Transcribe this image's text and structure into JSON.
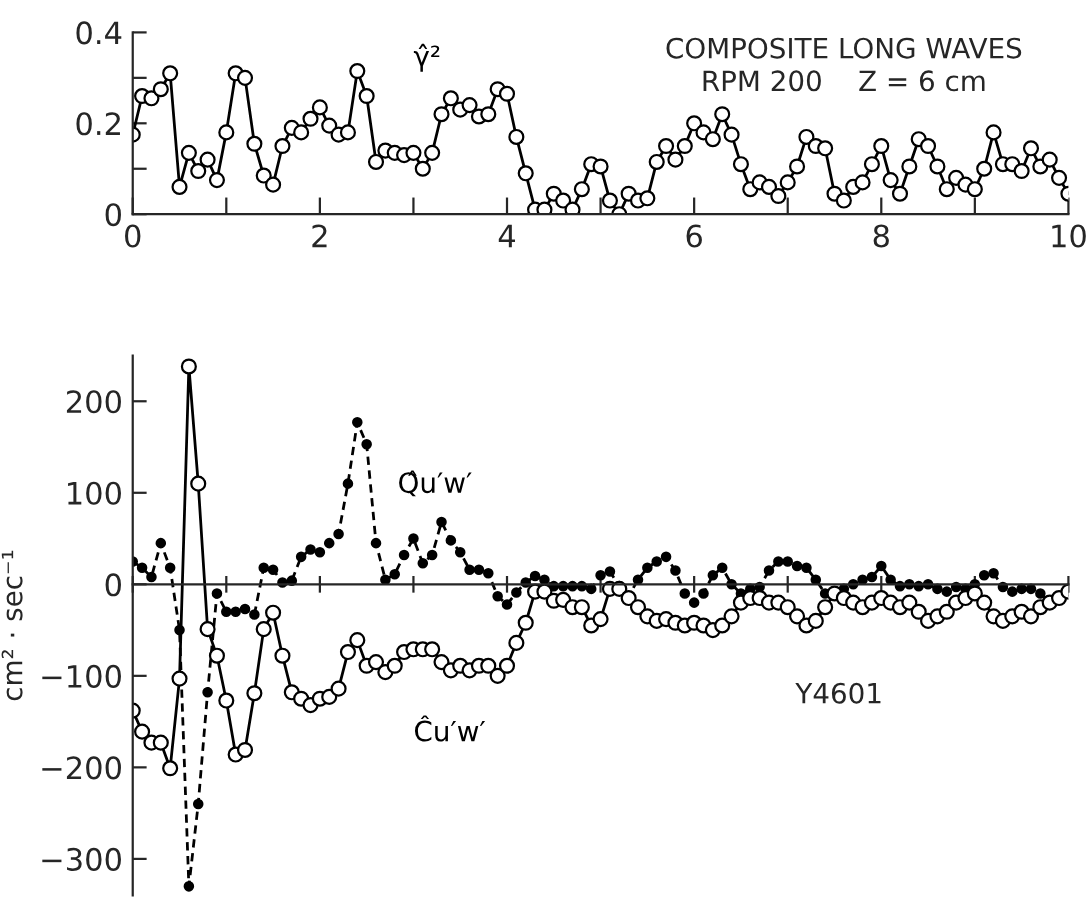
{
  "chart_data": [
    {
      "type": "line",
      "annotations": [
        "COMPOSITE LONG WAVES",
        "RPM 200    Z = 6 cm"
      ],
      "xlim": [
        0,
        10
      ],
      "ylim": [
        0,
        0.4
      ],
      "xticks": [
        0,
        {
          "value": 1,
          "label": null
        },
        2,
        {
          "value": 3,
          "label": null
        },
        4,
        {
          "value": 5,
          "label": null
        },
        6,
        {
          "value": 7,
          "label": null
        },
        8,
        {
          "value": 9,
          "label": null
        },
        10
      ],
      "yticks": [
        0,
        {
          "value": 0.1,
          "label": null
        },
        0.2,
        {
          "value": 0.3,
          "label": null
        },
        0.4
      ],
      "legend": false,
      "series": [
        {
          "name": "γ̂²",
          "color": "#000000",
          "marker": "circle",
          "line_style": "solid",
          "x": [
            0,
            0.1,
            0.2,
            0.3,
            0.4,
            0.5,
            0.6,
            0.7,
            0.8,
            0.9,
            1.0,
            1.1,
            1.2,
            1.3,
            1.4,
            1.5,
            1.6,
            1.7,
            1.8,
            1.9,
            2.0,
            2.1,
            2.2,
            2.3,
            2.4,
            2.5,
            2.6,
            2.7,
            2.8,
            2.9,
            3.0,
            3.1,
            3.2,
            3.3,
            3.4,
            3.5,
            3.6,
            3.7,
            3.8,
            3.9,
            4.0,
            4.1,
            4.2,
            4.3,
            4.4,
            4.5,
            4.6,
            4.7,
            4.8,
            4.9,
            5.0,
            5.1,
            5.2,
            5.3,
            5.4,
            5.5,
            5.6,
            5.7,
            5.8,
            5.9,
            6.0,
            6.1,
            6.2,
            6.3,
            6.4,
            6.5,
            6.6,
            6.7,
            6.8,
            6.9,
            7.0,
            7.1,
            7.2,
            7.3,
            7.4,
            7.5,
            7.6,
            7.7,
            7.8,
            7.9,
            8.0,
            8.1,
            8.2,
            8.3,
            8.4,
            8.5,
            8.6,
            8.7,
            8.8,
            8.9,
            9.0,
            9.1,
            9.2,
            9.3,
            9.4,
            9.5,
            9.6,
            9.7,
            9.8,
            9.9,
            10.0
          ],
          "values": [
            0.175,
            0.26,
            0.255,
            0.275,
            0.31,
            0.06,
            0.135,
            0.095,
            0.12,
            0.075,
            0.18,
            0.31,
            0.3,
            0.155,
            0.085,
            0.065,
            0.15,
            0.19,
            0.18,
            0.21,
            0.235,
            0.195,
            0.175,
            0.18,
            0.315,
            0.26,
            0.115,
            0.14,
            0.135,
            0.13,
            0.135,
            0.1,
            0.135,
            0.22,
            0.255,
            0.23,
            0.24,
            0.215,
            0.22,
            0.275,
            0.265,
            0.17,
            0.09,
            0.01,
            0.01,
            0.045,
            0.03,
            0.01,
            0.055,
            0.11,
            0.105,
            0.03,
            0.0,
            0.045,
            0.03,
            0.035,
            0.115,
            0.15,
            0.12,
            0.15,
            0.2,
            0.18,
            0.165,
            0.22,
            0.175,
            0.11,
            0.055,
            0.07,
            0.06,
            0.04,
            0.07,
            0.105,
            0.17,
            0.15,
            0.145,
            0.045,
            0.03,
            0.06,
            0.07,
            0.11,
            0.15,
            0.075,
            0.045,
            0.105,
            0.165,
            0.15,
            0.105,
            0.055,
            0.08,
            0.065,
            0.055,
            0.1,
            0.18,
            0.11,
            0.11,
            0.095,
            0.145,
            0.105,
            0.12,
            0.08,
            0.045
          ]
        }
      ]
    },
    {
      "type": "line",
      "ylabel": "cm² · sec⁻¹",
      "annotations": [
        "Y4601"
      ],
      "xlim": [
        0,
        10
      ],
      "ylim": [
        -340,
        250
      ],
      "tick_labels": "y",
      "xticks": [
        {
          "value": 0,
          "label": null
        },
        {
          "value": 1,
          "label": null
        },
        {
          "value": 2,
          "label": null
        },
        {
          "value": 3,
          "label": null
        },
        {
          "value": 4,
          "label": null
        },
        {
          "value": 5,
          "label": null
        },
        {
          "value": 6,
          "label": null
        },
        {
          "value": 7,
          "label": null
        },
        {
          "value": 8,
          "label": null
        },
        {
          "value": 9,
          "label": null
        },
        {
          "value": 10,
          "label": null
        }
      ],
      "yticks": [
        {
          "value": -300,
          "label": "−300"
        },
        {
          "value": -200,
          "label": "−200"
        },
        {
          "value": -100,
          "label": "−100"
        },
        0,
        100,
        200
      ],
      "legend": false,
      "series": [
        {
          "name": "Q̂u′w′",
          "color": "#000000",
          "marker": "circle",
          "line_style": "dashed",
          "x": [
            0,
            0.1,
            0.2,
            0.3,
            0.4,
            0.5,
            0.6,
            0.7,
            0.8,
            0.9,
            1.0,
            1.1,
            1.2,
            1.3,
            1.4,
            1.5,
            1.6,
            1.7,
            1.8,
            1.9,
            2.0,
            2.1,
            2.2,
            2.3,
            2.4,
            2.5,
            2.6,
            2.7,
            2.8,
            2.9,
            3.0,
            3.1,
            3.2,
            3.3,
            3.4,
            3.5,
            3.6,
            3.7,
            3.8,
            3.9,
            4.0,
            4.1,
            4.2,
            4.3,
            4.4,
            4.5,
            4.6,
            4.7,
            4.8,
            4.9,
            5.0,
            5.1,
            5.2,
            5.3,
            5.4,
            5.5,
            5.6,
            5.7,
            5.8,
            5.9,
            6.0,
            6.1,
            6.2,
            6.3,
            6.4,
            6.5,
            6.6,
            6.7,
            6.8,
            6.9,
            7.0,
            7.1,
            7.2,
            7.3,
            7.4,
            7.5,
            7.6,
            7.7,
            7.8,
            7.9,
            8.0,
            8.1,
            8.2,
            8.3,
            8.4,
            8.5,
            8.6,
            8.7,
            8.8,
            8.9,
            9.0,
            9.1,
            9.2,
            9.3,
            9.4,
            9.5,
            9.6,
            9.7,
            9.8,
            9.9,
            10.0
          ],
          "values": [
            25,
            18,
            8,
            45,
            18,
            -50,
            -330,
            -240,
            -118,
            -10,
            -30,
            -30,
            -27,
            -33,
            18,
            16,
            2,
            4,
            30,
            38,
            35,
            45,
            55,
            110,
            177,
            153,
            45,
            5,
            11,
            32,
            50,
            23,
            32,
            68,
            48,
            35,
            16,
            16,
            12,
            -13,
            -22,
            -9,
            2,
            9,
            5,
            -2,
            -2,
            -2,
            -2,
            -5,
            10,
            14,
            -2,
            -13,
            5,
            18,
            25,
            30,
            15,
            -10,
            -20,
            -10,
            10,
            18,
            0,
            -10,
            -5,
            -3,
            15,
            25,
            25,
            20,
            18,
            5,
            -10,
            -12,
            -5,
            0,
            5,
            8,
            20,
            5,
            -2,
            0,
            -2,
            0,
            -5,
            -8,
            -3,
            -5,
            0,
            10,
            12,
            -3,
            -8,
            -5,
            -5,
            -10,
            -20,
            -15,
            -8
          ]
        },
        {
          "name": "Ĉu′w′",
          "color": "#000000",
          "marker": "circle",
          "line_style": "solid",
          "x": [
            0,
            0.1,
            0.2,
            0.3,
            0.4,
            0.5,
            0.6,
            0.7,
            0.8,
            0.9,
            1.0,
            1.1,
            1.2,
            1.3,
            1.4,
            1.5,
            1.6,
            1.7,
            1.8,
            1.9,
            2.0,
            2.1,
            2.2,
            2.3,
            2.4,
            2.5,
            2.6,
            2.7,
            2.8,
            2.9,
            3.0,
            3.1,
            3.2,
            3.3,
            3.4,
            3.5,
            3.6,
            3.7,
            3.8,
            3.9,
            4.0,
            4.1,
            4.2,
            4.3,
            4.4,
            4.5,
            4.6,
            4.7,
            4.8,
            4.9,
            5.0,
            5.1,
            5.2,
            5.3,
            5.4,
            5.5,
            5.6,
            5.7,
            5.8,
            5.9,
            6.0,
            6.1,
            6.2,
            6.3,
            6.4,
            6.5,
            6.6,
            6.7,
            6.8,
            6.9,
            7.0,
            7.1,
            7.2,
            7.3,
            7.4,
            7.5,
            7.6,
            7.7,
            7.8,
            7.9,
            8.0,
            8.1,
            8.2,
            8.3,
            8.4,
            8.5,
            8.6,
            8.7,
            8.8,
            8.9,
            9.0,
            9.1,
            9.2,
            9.3,
            9.4,
            9.5,
            9.6,
            9.7,
            9.8,
            9.9,
            10.0
          ],
          "values": [
            -138,
            -161,
            -173,
            -173,
            -201,
            -103,
            238,
            110,
            -49,
            -78,
            -127,
            -186,
            -181,
            -119,
            -49,
            -31,
            -78,
            -118,
            -125,
            -132,
            -125,
            -123,
            -114,
            -74,
            -61,
            -89,
            -85,
            -96,
            -89,
            -74,
            -71,
            -71,
            -71,
            -85,
            -94,
            -89,
            -94,
            -89,
            -89,
            -100,
            -89,
            -64,
            -42,
            -8,
            -8,
            -18,
            -17,
            -25,
            -25,
            -45,
            -38,
            -5,
            -5,
            -15,
            -25,
            -35,
            -40,
            -38,
            -42,
            -45,
            -42,
            -45,
            -50,
            -45,
            -35,
            -20,
            -15,
            -15,
            -20,
            -20,
            -25,
            -35,
            -45,
            -40,
            -25,
            -10,
            -15,
            -20,
            -25,
            -20,
            -15,
            -20,
            -25,
            -20,
            -30,
            -40,
            -35,
            -30,
            -20,
            -15,
            -10,
            -20,
            -35,
            -40,
            -35,
            -30,
            -35,
            -25,
            -20,
            -15,
            -8
          ]
        }
      ]
    }
  ]
}
